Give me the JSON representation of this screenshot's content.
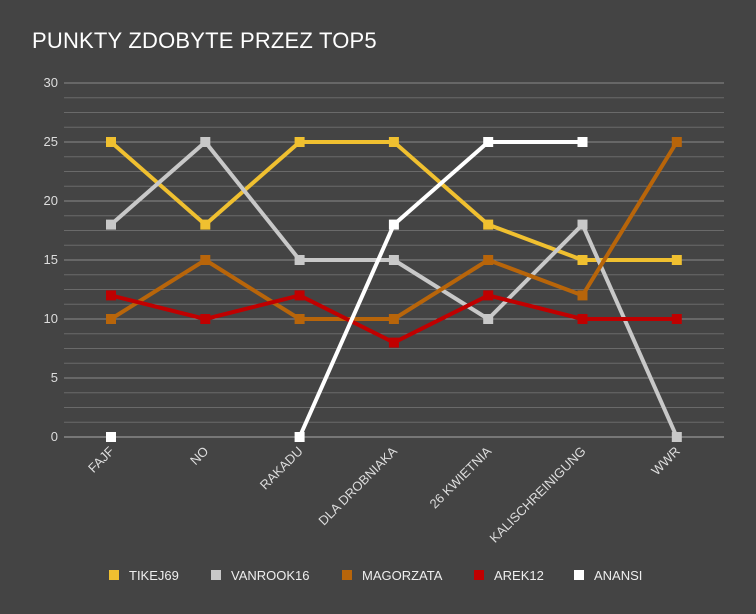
{
  "chart_data": {
    "type": "line",
    "title": "PUNKTY ZDOBYTE PRZEZ TOP5",
    "xlabel": "",
    "ylabel": "",
    "ylim": [
      0,
      30
    ],
    "yticks": [
      "0",
      "5",
      "10",
      "15",
      "20",
      "25",
      "30"
    ],
    "grid": true,
    "legend_position": "bottom",
    "categories": [
      "FAJF",
      "NO",
      "RAKADU",
      "DLA DROBNIAKA",
      "26 KWIETNIA",
      "KALISCHREINIGUNG",
      "WWR"
    ],
    "series": [
      {
        "name": "TIKEJ69",
        "color": "#f0c030",
        "values": [
          25,
          18,
          25,
          25,
          18,
          15,
          15
        ]
      },
      {
        "name": "VANROOK16",
        "color": "#c8c8c8",
        "values": [
          18,
          25,
          15,
          15,
          10,
          18,
          0
        ]
      },
      {
        "name": "MAGORZATA",
        "color": "#b8650a",
        "values": [
          10,
          15,
          10,
          10,
          15,
          12,
          25
        ]
      },
      {
        "name": "AREK12",
        "color": "#c00000",
        "values": [
          12,
          10,
          12,
          8,
          12,
          10,
          10
        ]
      },
      {
        "name": "ANANSI",
        "color": "#ffffff",
        "values": [
          0,
          null,
          0,
          18,
          25,
          25,
          null
        ]
      }
    ]
  }
}
